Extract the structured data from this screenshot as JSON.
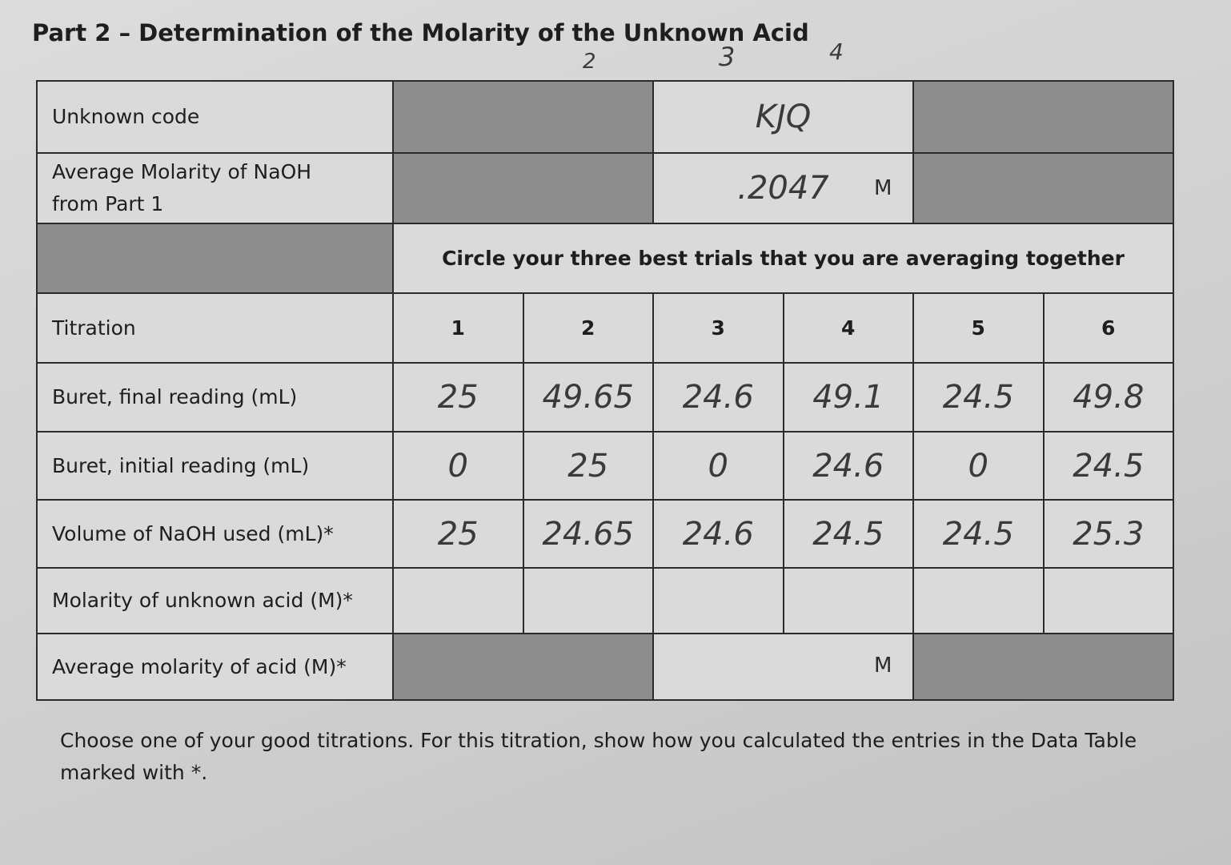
{
  "header": {
    "title": "Part 2 – Determination of the Molarity of the Unknown Acid",
    "trial_marks": [
      "2",
      "3",
      "4"
    ]
  },
  "table": {
    "unknown_code": {
      "label": "Unknown code",
      "value": "KJQ"
    },
    "naoh_molarity": {
      "label": "Average Molarity of NaOH from Part 1",
      "value": ".2047",
      "unit": "M"
    },
    "instruction": "Circle your three best trials that you are averaging together",
    "titration": {
      "label": "Titration",
      "trials": [
        "1",
        "2",
        "3",
        "4",
        "5",
        "6"
      ]
    },
    "rows": [
      {
        "label": "Buret, final reading (mL)",
        "values": [
          "25",
          "49.65",
          "24.6",
          "49.1",
          "24.5",
          "49.8"
        ]
      },
      {
        "label": "Buret, initial reading (mL)",
        "values": [
          "0",
          "25",
          "0",
          "24.6",
          "0",
          "24.5"
        ]
      },
      {
        "label": "Volume of NaOH used (mL)*",
        "values": [
          "25",
          "24.65",
          "24.6",
          "24.5",
          "24.5",
          "25.3"
        ]
      }
    ],
    "molarity_row": {
      "label": "Molarity of unknown acid (M)*"
    },
    "average_row": {
      "label": "Average molarity of acid (M)*",
      "unit": "M"
    }
  },
  "footer": {
    "text": "Choose one of your good titrations. For this titration, show how you calculated the entries in the Data Table marked with *."
  }
}
